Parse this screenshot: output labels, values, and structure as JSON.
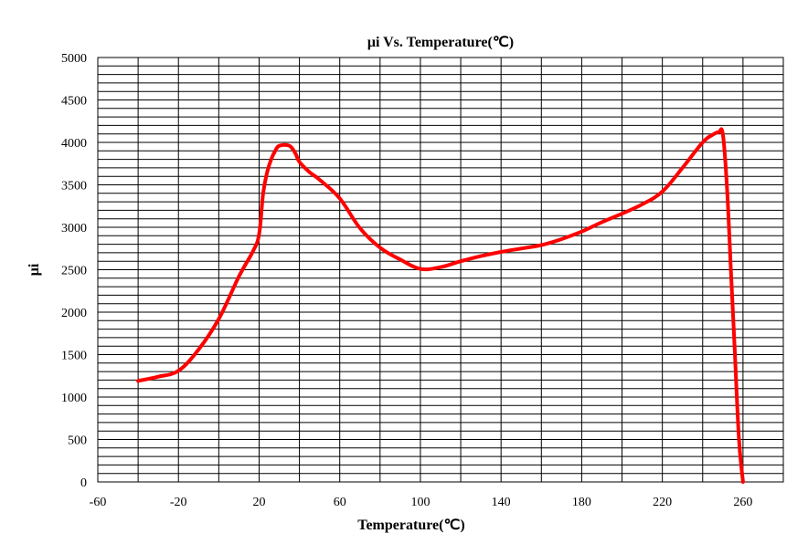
{
  "chart_data": {
    "type": "line",
    "title": "μi Vs. Temperature(℃)",
    "xlabel": "Temperature(℃)",
    "ylabel": "μi",
    "xlim": [
      -60,
      280
    ],
    "ylim": [
      0,
      5000
    ],
    "x_ticks": [
      -60,
      -20,
      20,
      60,
      100,
      140,
      180,
      220,
      260
    ],
    "y_ticks": [
      0,
      500,
      1000,
      1500,
      2000,
      2500,
      3000,
      3500,
      4000,
      4500,
      5000
    ],
    "x_grid_step": 20,
    "y_grid_step": 100,
    "grid": true,
    "series": [
      {
        "color": "#ff0000",
        "x": [
          -40,
          -30,
          -20,
          -10,
          0,
          10,
          17,
          20,
          22,
          24,
          26,
          28,
          30,
          35,
          38,
          40,
          45,
          50,
          60,
          70,
          80,
          90,
          100,
          110,
          120,
          130,
          140,
          150,
          160,
          170,
          180,
          190,
          200,
          210,
          220,
          230,
          240,
          245,
          248,
          250,
          252,
          254,
          256,
          258,
          260
        ],
        "y": [
          1190,
          1240,
          1310,
          1560,
          1920,
          2420,
          2720,
          2920,
          3400,
          3650,
          3800,
          3900,
          3960,
          3960,
          3870,
          3770,
          3650,
          3560,
          3340,
          2990,
          2760,
          2620,
          2510,
          2530,
          2600,
          2660,
          2710,
          2750,
          2790,
          2860,
          2950,
          3060,
          3160,
          3270,
          3420,
          3700,
          4000,
          4090,
          4120,
          4100,
          3500,
          2500,
          1500,
          500,
          0
        ]
      }
    ]
  }
}
